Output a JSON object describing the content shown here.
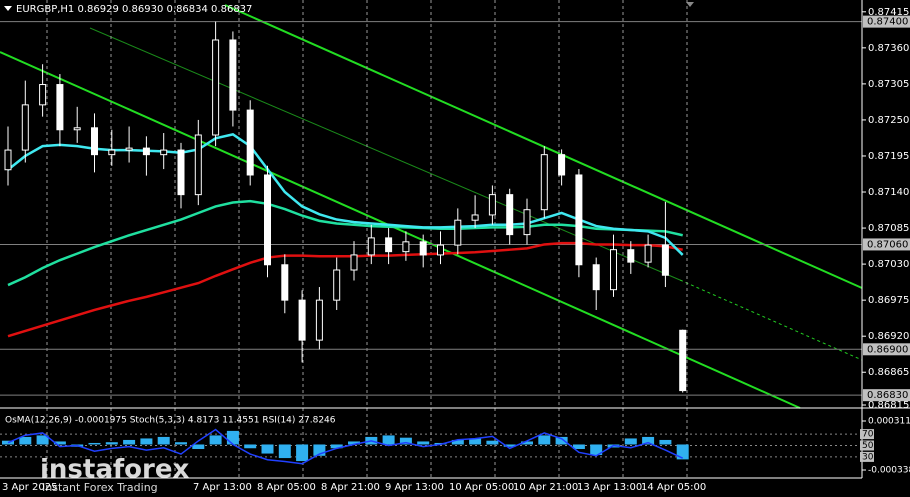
{
  "chart_data": {
    "type": "candlestick",
    "title": "EURGBP,H1  0.86929 0.86930 0.86834 0.86837",
    "ylim": [
      0.86815,
      0.87433
    ],
    "yticks": [
      0.87415,
      {
        "value": 0.8736,
        "label": "0.87360"
      },
      0.87305,
      {
        "value": 0.8725,
        "label": "0.87250"
      },
      0.87195,
      {
        "value": 0.8714,
        "label": "0.87140"
      },
      0.87085,
      {
        "value": 0.8703,
        "label": "0.87030"
      },
      0.86975,
      {
        "value": 0.8692,
        "label": "0.86920"
      },
      0.86865,
      0.86815
    ],
    "levels": [
      {
        "value": 0.874,
        "label": "0.87400"
      },
      {
        "value": 0.8706,
        "label": "0.87060"
      },
      {
        "value": 0.869,
        "label": "0.86900"
      },
      {
        "value": 0.8683,
        "label": "0.86830"
      }
    ],
    "xticks": [
      "3 Apr 2025",
      "7 Apr 13:00",
      "8 Apr 05:00",
      "8 Apr 21:00",
      "9 Apr 13:00",
      "10 Apr 05:00",
      "10 Apr 21:00",
      "13 Apr 13:00",
      "14 Apr 05:00"
    ],
    "opens": [
      0.87174,
      0.87204,
      0.87273,
      0.87304,
      0.87235,
      0.87238,
      0.87197,
      0.87204,
      0.87207,
      0.87197,
      0.87204,
      0.87136,
      0.87227,
      0.87372,
      0.87265,
      0.87166,
      0.87029,
      0.86975,
      0.86914,
      0.86975,
      0.87021,
      0.87044,
      0.8707,
      0.87049,
      0.87064,
      0.87044,
      0.87059,
      0.87097,
      0.87105,
      0.87136,
      0.87075,
      0.87113,
      0.87197,
      0.87166,
      0.87029,
      0.86991,
      0.87052,
      0.87033,
      0.87059,
      0.86929
    ],
    "highs": [
      0.8724,
      0.8731,
      0.87335,
      0.8732,
      0.8727,
      0.8726,
      0.87235,
      0.8724,
      0.87225,
      0.8723,
      0.87215,
      0.8725,
      0.874,
      0.87385,
      0.8728,
      0.8718,
      0.87045,
      0.8699,
      0.86995,
      0.8704,
      0.87065,
      0.8709,
      0.87085,
      0.8708,
      0.87075,
      0.8708,
      0.87115,
      0.87135,
      0.8715,
      0.87145,
      0.8713,
      0.8721,
      0.87205,
      0.87175,
      0.8704,
      0.87075,
      0.87065,
      0.87075,
      0.87125,
      0.8693
    ],
    "lows": [
      0.8715,
      0.87185,
      0.87255,
      0.8721,
      0.87215,
      0.8717,
      0.8718,
      0.87185,
      0.87165,
      0.87175,
      0.87115,
      0.8712,
      0.8721,
      0.8724,
      0.8715,
      0.8701,
      0.86955,
      0.8688,
      0.869,
      0.8696,
      0.87005,
      0.8703,
      0.8703,
      0.87035,
      0.87025,
      0.8703,
      0.87045,
      0.87085,
      0.8709,
      0.8706,
      0.8706,
      0.871,
      0.8715,
      0.8701,
      0.8696,
      0.8698,
      0.87015,
      0.87025,
      0.86995,
      0.86834
    ],
    "closes": [
      0.87204,
      0.87273,
      0.87304,
      0.87235,
      0.87238,
      0.87197,
      0.87204,
      0.87207,
      0.87197,
      0.87204,
      0.87136,
      0.87227,
      0.87372,
      0.87265,
      0.87166,
      0.87029,
      0.86975,
      0.86914,
      0.86975,
      0.87021,
      0.87044,
      0.8707,
      0.87049,
      0.87064,
      0.87044,
      0.87059,
      0.87097,
      0.87105,
      0.87136,
      0.87075,
      0.87113,
      0.87197,
      0.87166,
      0.87029,
      0.86991,
      0.87052,
      0.87033,
      0.87059,
      0.87013,
      0.86837
    ],
    "moving_averages": [
      {
        "color": "#e01010",
        "values": [
          0.8692,
          0.86928,
          0.86936,
          0.86944,
          0.86952,
          0.8696,
          0.86967,
          0.86974,
          0.8698,
          0.86987,
          0.86994,
          0.87001,
          0.87012,
          0.87022,
          0.87032,
          0.8704,
          0.87043,
          0.87043,
          0.87042,
          0.87042,
          0.87042,
          0.87043,
          0.87043,
          0.87044,
          0.87045,
          0.87046,
          0.87047,
          0.87048,
          0.8705,
          0.87052,
          0.87054,
          0.8706,
          0.87062,
          0.87062,
          0.8706,
          0.8706,
          0.87059,
          0.87059,
          0.87057,
          0.87052
        ]
      },
      {
        "color": "#20e0a0",
        "values": [
          0.86998,
          0.8701,
          0.87024,
          0.87036,
          0.87046,
          0.87056,
          0.87065,
          0.87074,
          0.87082,
          0.8709,
          0.87098,
          0.87108,
          0.87118,
          0.87124,
          0.87126,
          0.87122,
          0.87114,
          0.87104,
          0.87096,
          0.87092,
          0.8709,
          0.87088,
          0.87087,
          0.87086,
          0.87085,
          0.87084,
          0.87084,
          0.87085,
          0.87086,
          0.87086,
          0.87087,
          0.8709,
          0.8709,
          0.87088,
          0.87084,
          0.87083,
          0.87082,
          0.87081,
          0.8708,
          0.87074
        ]
      },
      {
        "color": "#40e8f0",
        "values": [
          0.87174,
          0.87195,
          0.8721,
          0.87212,
          0.8721,
          0.87206,
          0.87204,
          0.87204,
          0.87203,
          0.87202,
          0.872,
          0.87205,
          0.87222,
          0.87228,
          0.8721,
          0.87175,
          0.8714,
          0.87118,
          0.87106,
          0.87098,
          0.87094,
          0.87092,
          0.8709,
          0.87088,
          0.87086,
          0.87086,
          0.87087,
          0.87088,
          0.8709,
          0.8709,
          0.87092,
          0.871,
          0.87108,
          0.87098,
          0.87088,
          0.87084,
          0.87082,
          0.8708,
          0.8707,
          0.87044
        ]
      }
    ],
    "indicator": {
      "label": "OsMA(12,26,9) -0.0001975  Stoch(5,3,3) 4.8173 11.4551  RSI(14) 27.8246",
      "osma": {
        "color": "#30b0f0",
        "ylim": [
          -0.000338,
          0.000311
        ],
        "yticks": [
          0.000311,
          -0.000338
        ],
        "values": [
          5e-05,
          0.0001,
          0.00012,
          4e-05,
          -3e-05,
          2e-05,
          3e-05,
          6e-05,
          8e-05,
          0.0001,
          3e-05,
          -6e-05,
          0.00012,
          0.00018,
          -5e-05,
          -0.00012,
          -0.00018,
          -0.00022,
          -0.00015,
          -5e-05,
          4e-05,
          0.0001,
          0.00012,
          9e-05,
          4e-05,
          2e-05,
          6e-05,
          8e-05,
          5e-05,
          -3e-05,
          4e-05,
          0.00012,
          0.0001,
          -6e-05,
          -0.00014,
          -4e-05,
          8e-05,
          0.0001,
          6e-05,
          -0.0001975
        ]
      },
      "rsi": {
        "color": "#2040ff",
        "ylim": [
          0,
          100
        ],
        "yticks": [
          70,
          50,
          30
        ],
        "values": [
          55,
          68,
          72,
          48,
          50,
          40,
          45,
          48,
          42,
          46,
          35,
          58,
          78,
          52,
          35,
          25,
          22,
          18,
          35,
          45,
          52,
          58,
          50,
          55,
          48,
          52,
          60,
          62,
          66,
          45,
          58,
          72,
          62,
          38,
          32,
          50,
          46,
          55,
          42,
          27.8246
        ]
      }
    },
    "watermark": {
      "brand": "instaforex",
      "tagline": "Instant Forex Trading"
    }
  }
}
